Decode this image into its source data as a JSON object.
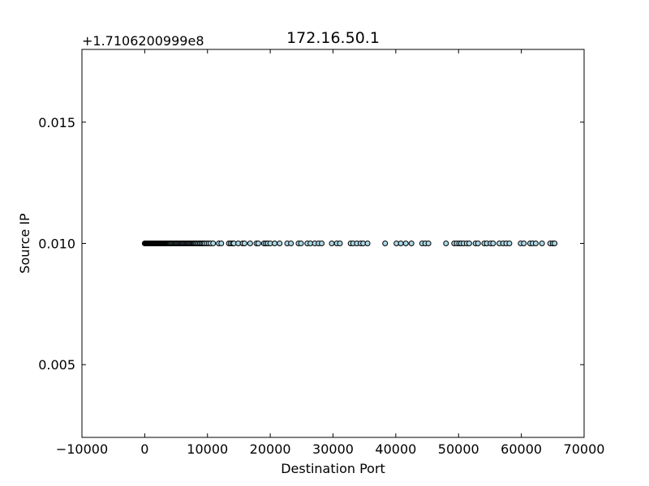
{
  "chart_data": {
    "type": "scatter",
    "title": "172.16.50.1",
    "xlabel": "Destination Port",
    "ylabel": "Source IP",
    "xlim": [
      -10000,
      70000
    ],
    "ylim": [
      0.002,
      0.018
    ],
    "y_offset_label": "+1.7106200999e8",
    "xticks": [
      -10000,
      0,
      10000,
      20000,
      30000,
      40000,
      50000,
      60000,
      70000
    ],
    "xtick_labels": [
      "−10000",
      "0",
      "10000",
      "20000",
      "30000",
      "40000",
      "50000",
      "60000",
      "70000"
    ],
    "yticks": [
      0.005,
      0.01,
      0.015
    ],
    "ytick_labels": [
      "0.005",
      "0.010",
      "0.015"
    ],
    "grid": false,
    "marker_color": "#add8e6",
    "marker_edge": "#000000",
    "points": {
      "y": 0.01,
      "x": [
        0,
        80,
        150,
        220,
        300,
        380,
        445,
        520,
        600,
        680,
        760,
        850,
        940,
        1020,
        1100,
        1200,
        1300,
        1400,
        1500,
        1600,
        1700,
        1800,
        1900,
        2000,
        2100,
        2200,
        2300,
        2400,
        2500,
        2600,
        2700,
        2800,
        2900,
        3000,
        3100,
        3200,
        3300,
        3400,
        3500,
        3600,
        3700,
        3800,
        3900,
        4000,
        4150,
        4300,
        4450,
        4600,
        4750,
        4900,
        5050,
        5200,
        5350,
        5500,
        5650,
        5800,
        5950,
        6100,
        6250,
        6400,
        6550,
        6700,
        6850,
        7000,
        7150,
        7300,
        7450,
        7600,
        7750,
        7900,
        8050,
        8200,
        8400,
        8600,
        8800,
        9000,
        9200,
        9400,
        9600,
        9900,
        10200,
        10500,
        10900,
        11800,
        12200,
        13400,
        13700,
        14000,
        14200,
        14900,
        15600,
        15900,
        16800,
        17800,
        18100,
        19000,
        19300,
        19600,
        20000,
        20700,
        21500,
        22700,
        23300,
        24500,
        24900,
        25900,
        26400,
        27100,
        27700,
        28200,
        29800,
        30600,
        31100,
        32800,
        33200,
        33800,
        34400,
        34800,
        35500,
        38300,
        40100,
        40800,
        41600,
        42500,
        44200,
        44700,
        45200,
        48000,
        49300,
        49700,
        50100,
        50400,
        50800,
        51300,
        51700,
        52700,
        53100,
        54100,
        54500,
        55100,
        55500,
        56500,
        57100,
        57600,
        58100,
        59900,
        60400,
        61400,
        61800,
        62300,
        63300,
        64600,
        65000,
        65300
      ]
    }
  }
}
